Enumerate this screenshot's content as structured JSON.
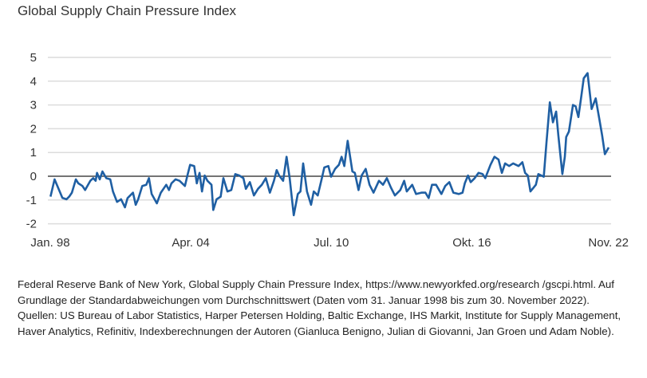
{
  "chart_data": {
    "type": "line",
    "title": "Global Supply Chain Pressure Index",
    "xlabel": "",
    "ylabel": "",
    "ylim": [
      -2,
      5
    ],
    "xlim": [
      1998.0,
      2022.84
    ],
    "grid": true,
    "yticks": [
      5,
      4,
      3,
      2,
      1,
      0,
      -1,
      -2
    ],
    "ytick_labels": [
      "5",
      "4",
      "3",
      "2",
      "1",
      "0",
      "-1",
      "-2"
    ],
    "xticks": [
      {
        "x": 1998.0,
        "label": "Jan. 98"
      },
      {
        "x": 2004.25,
        "label": "Apr. 04"
      },
      {
        "x": 2010.5,
        "label": "Jul. 10"
      },
      {
        "x": 2016.75,
        "label": "Okt. 16"
      },
      {
        "x": 2022.83,
        "label": "Nov. 22"
      }
    ],
    "line_color": "#1f5fa3",
    "x": [
      1998.01,
      1998.19,
      1998.37,
      1998.54,
      1998.72,
      1998.84,
      1998.96,
      1999.14,
      1999.25,
      1999.43,
      1999.55,
      1999.78,
      1999.91,
      2000.02,
      2000.08,
      2000.2,
      2000.32,
      2000.49,
      2000.67,
      2000.79,
      2000.97,
      2001.15,
      2001.32,
      2001.44,
      2001.68,
      2001.8,
      2001.91,
      2002.09,
      2002.27,
      2002.39,
      2002.51,
      2002.74,
      2002.92,
      2003.16,
      2003.28,
      2003.39,
      2003.57,
      2003.75,
      2003.99,
      2004.1,
      2004.22,
      2004.4,
      2004.52,
      2004.64,
      2004.75,
      2004.87,
      2004.99,
      2005.17,
      2005.25,
      2005.4,
      2005.58,
      2005.7,
      2005.88,
      2006.05,
      2006.23,
      2006.41,
      2006.59,
      2006.7,
      2006.88,
      2007.06,
      2007.24,
      2007.41,
      2007.59,
      2007.77,
      2007.95,
      2008.07,
      2008.18,
      2008.36,
      2008.51,
      2008.65,
      2008.83,
      2009.01,
      2009.13,
      2009.25,
      2009.42,
      2009.6,
      2009.72,
      2009.9,
      2010.07,
      2010.19,
      2010.37,
      2010.49,
      2010.67,
      2010.84,
      2010.96,
      2011.08,
      2011.23,
      2011.44,
      2011.55,
      2011.71,
      2011.85,
      2012.03,
      2012.2,
      2012.38,
      2012.62,
      2012.8,
      2012.97,
      2013.15,
      2013.33,
      2013.57,
      2013.74,
      2013.86,
      2014.1,
      2014.27,
      2014.51,
      2014.69,
      2014.83,
      2014.98,
      2015.16,
      2015.4,
      2015.57,
      2015.75,
      2015.93,
      2016.17,
      2016.34,
      2016.44,
      2016.58,
      2016.7,
      2016.88,
      2017.05,
      2017.23,
      2017.35,
      2017.58,
      2017.76,
      2017.94,
      2018.09,
      2018.23,
      2018.41,
      2018.59,
      2018.83,
      2019.0,
      2019.12,
      2019.24,
      2019.36,
      2019.6,
      2019.71,
      2019.95,
      2020.07,
      2020.22,
      2020.36,
      2020.5,
      2020.6,
      2020.78,
      2020.89,
      2020.95,
      2021.07,
      2021.25,
      2021.37,
      2021.49,
      2021.61,
      2021.73,
      2021.9,
      2022.08,
      2022.26,
      2022.43,
      2022.55,
      2022.67,
      2022.84
    ],
    "values": [
      -0.86,
      -0.13,
      -0.53,
      -0.91,
      -0.97,
      -0.86,
      -0.69,
      -0.13,
      -0.3,
      -0.41,
      -0.58,
      -0.19,
      -0.08,
      -0.19,
      0.14,
      -0.13,
      0.2,
      -0.08,
      -0.13,
      -0.64,
      -1.08,
      -0.97,
      -1.31,
      -0.92,
      -0.69,
      -1.2,
      -0.97,
      -0.41,
      -0.36,
      -0.08,
      -0.75,
      -1.14,
      -0.69,
      -0.36,
      -0.58,
      -0.3,
      -0.13,
      -0.19,
      -0.41,
      0.03,
      0.48,
      0.43,
      -0.3,
      0.14,
      -0.64,
      0.03,
      -0.19,
      -0.36,
      -1.42,
      -0.97,
      -0.86,
      -0.08,
      -0.64,
      -0.58,
      0.09,
      0.03,
      -0.08,
      -0.53,
      -0.25,
      -0.81,
      -0.53,
      -0.36,
      -0.08,
      -0.69,
      -0.19,
      0.26,
      0.03,
      -0.19,
      0.82,
      -0.08,
      -1.64,
      -0.75,
      -0.64,
      0.54,
      -0.64,
      -1.2,
      -0.64,
      -0.81,
      -0.13,
      0.37,
      0.43,
      -0.02,
      0.31,
      0.48,
      0.82,
      0.43,
      1.49,
      0.2,
      0.14,
      -0.58,
      0.03,
      0.31,
      -0.36,
      -0.69,
      -0.19,
      -0.36,
      -0.08,
      -0.47,
      -0.81,
      -0.58,
      -0.19,
      -0.64,
      -0.36,
      -0.75,
      -0.69,
      -0.69,
      -0.92,
      -0.36,
      -0.36,
      -0.75,
      -0.41,
      -0.25,
      -0.69,
      -0.75,
      -0.69,
      -0.3,
      0.03,
      -0.25,
      -0.08,
      0.14,
      0.09,
      -0.08,
      0.48,
      0.82,
      0.7,
      0.14,
      0.54,
      0.43,
      0.54,
      0.43,
      0.59,
      0.14,
      0.03,
      -0.64,
      -0.36,
      0.09,
      -0.02,
      1.38,
      3.11,
      2.27,
      2.72,
      1.71,
      0.09,
      0.82,
      1.65,
      1.88,
      3.0,
      2.94,
      2.49,
      3.28,
      4.12,
      4.34,
      2.83,
      3.28,
      2.38,
      1.71,
      0.93,
      1.21
    ]
  },
  "footnote": "Federal Reserve Bank of New York, Global Supply Chain Pressure Index, https://www.newyorkfed.org/research /gscpi.html. Auf Grundlage der Standardabweichungen vom Durchschnittswert (Daten vom 31. Januar 1998 bis zum 30. November 2022). Quellen: US Bureau of Labor Statistics, Harper Petersen Holding, Baltic Exchange, IHS Markit, Institute for Supply Management, Haver Analytics, Refinitiv, Indexberechnungen der Autoren (Gianluca Benigno, Julian di Giovanni, Jan Groen und Adam Noble)."
}
